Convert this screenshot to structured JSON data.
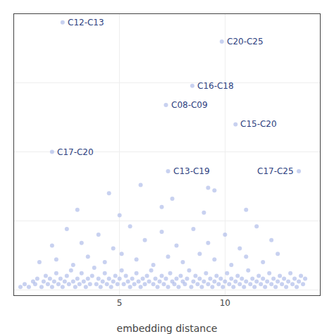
{
  "chart_data": {
    "type": "scatter",
    "xlabel": "embedding distance",
    "xlim": [
      0,
      14.5
    ],
    "ylim": [
      -0.02,
      1.0
    ],
    "xticks": [
      5,
      10
    ],
    "yticks": [
      0.0,
      0.25,
      0.5,
      0.75,
      1.0
    ],
    "grid": true,
    "tick_labels": "x",
    "color": "#aab8e8",
    "x": [
      0.3,
      0.5,
      0.7,
      0.9,
      1.0,
      1.1,
      1.3,
      1.4,
      1.5,
      1.6,
      1.7,
      1.8,
      1.9,
      2.0,
      2.1,
      2.2,
      2.3,
      2.4,
      2.5,
      2.6,
      2.7,
      2.8,
      2.9,
      3.0,
      3.1,
      3.2,
      3.3,
      3.4,
      3.5,
      3.6,
      3.7,
      3.8,
      3.9,
      4.0,
      4.1,
      4.2,
      4.3,
      4.4,
      4.5,
      4.6,
      4.7,
      4.8,
      4.9,
      5.0,
      5.1,
      5.2,
      5.3,
      5.4,
      5.5,
      5.6,
      5.7,
      5.8,
      5.9,
      6.0,
      6.1,
      6.2,
      6.3,
      6.4,
      6.5,
      6.6,
      6.7,
      6.8,
      6.9,
      7.0,
      7.1,
      7.2,
      7.3,
      7.4,
      7.5,
      7.6,
      7.7,
      7.8,
      7.9,
      8.0,
      8.1,
      8.2,
      8.3,
      8.4,
      8.5,
      8.6,
      8.7,
      8.8,
      8.9,
      9.0,
      9.1,
      9.2,
      9.3,
      9.4,
      9.5,
      9.6,
      9.7,
      9.8,
      9.9,
      10.0,
      10.1,
      10.2,
      10.3,
      10.4,
      10.5,
      10.6,
      10.7,
      10.8,
      10.9,
      11.0,
      11.1,
      11.2,
      11.3,
      11.4,
      11.5,
      11.6,
      11.7,
      11.8,
      11.9,
      12.0,
      12.1,
      12.2,
      12.3,
      12.4,
      12.5,
      12.6,
      12.7,
      12.8,
      12.9,
      13.0,
      13.1,
      13.2,
      13.3,
      13.4,
      13.5,
      13.6,
      13.7,
      13.8,
      1.2,
      2.0,
      2.8,
      3.5,
      4.3,
      5.1,
      5.8,
      6.6,
      7.3,
      8.0,
      8.8,
      9.5,
      10.3,
      11.0,
      11.8,
      12.5,
      1.8,
      3.2,
      4.7,
      6.2,
      7.7,
      9.2,
      10.7,
      12.2,
      2.5,
      4.0,
      5.5,
      7.0,
      8.5,
      10.0,
      11.5,
      3.0,
      5.0,
      7.0,
      9.0,
      11.0,
      4.5,
      7.5,
      9.5,
      6.0,
      9.2,
      2.3,
      9.85,
      8.45,
      7.2,
      10.5,
      1.8,
      7.3,
      13.5
    ],
    "values": [
      0.01,
      0.02,
      0.01,
      0.03,
      0.02,
      0.04,
      0.01,
      0.03,
      0.05,
      0.02,
      0.04,
      0.01,
      0.03,
      0.06,
      0.02,
      0.04,
      0.01,
      0.03,
      0.05,
      0.02,
      0.07,
      0.03,
      0.01,
      0.04,
      0.02,
      0.06,
      0.03,
      0.01,
      0.04,
      0.02,
      0.05,
      0.08,
      0.02,
      0.04,
      0.01,
      0.03,
      0.06,
      0.02,
      0.04,
      0.01,
      0.03,
      0.05,
      0.02,
      0.04,
      0.07,
      0.02,
      0.05,
      0.03,
      0.01,
      0.04,
      0.02,
      0.06,
      0.03,
      0.01,
      0.04,
      0.02,
      0.05,
      0.03,
      0.07,
      0.02,
      0.04,
      0.01,
      0.03,
      0.05,
      0.02,
      0.04,
      0.01,
      0.06,
      0.03,
      0.02,
      0.04,
      0.01,
      0.05,
      0.03,
      0.02,
      0.04,
      0.07,
      0.01,
      0.03,
      0.05,
      0.02,
      0.04,
      0.01,
      0.03,
      0.06,
      0.02,
      0.04,
      0.01,
      0.03,
      0.05,
      0.02,
      0.04,
      0.01,
      0.03,
      0.06,
      0.02,
      0.04,
      0.01,
      0.03,
      0.05,
      0.02,
      0.04,
      0.01,
      0.03,
      0.07,
      0.02,
      0.04,
      0.01,
      0.03,
      0.05,
      0.02,
      0.04,
      0.01,
      0.03,
      0.06,
      0.02,
      0.04,
      0.01,
      0.03,
      0.05,
      0.02,
      0.04,
      0.01,
      0.03,
      0.06,
      0.02,
      0.04,
      0.01,
      0.03,
      0.05,
      0.02,
      0.04,
      0.1,
      0.11,
      0.09,
      0.12,
      0.1,
      0.13,
      0.11,
      0.09,
      0.12,
      0.1,
      0.13,
      0.11,
      0.09,
      0.12,
      0.1,
      0.13,
      0.16,
      0.17,
      0.15,
      0.18,
      0.16,
      0.17,
      0.15,
      0.18,
      0.22,
      0.2,
      0.23,
      0.21,
      0.22,
      0.2,
      0.23,
      0.29,
      0.27,
      0.3,
      0.28,
      0.29,
      0.35,
      0.33,
      0.36,
      0.38,
      0.37,
      0.97,
      0.9,
      0.74,
      0.67,
      0.6,
      0.5,
      0.43,
      0.43
    ],
    "annotations": [
      {
        "text": "C12-C13",
        "x": 2.3,
        "y": 0.97
      },
      {
        "text": "C20-C25",
        "x": 9.85,
        "y": 0.9
      },
      {
        "text": "C16-C18",
        "x": 8.45,
        "y": 0.74
      },
      {
        "text": "C08-C09",
        "x": 7.2,
        "y": 0.67
      },
      {
        "text": "C15-C20",
        "x": 10.5,
        "y": 0.6
      },
      {
        "text": "C17-C20",
        "x": 1.8,
        "y": 0.5
      },
      {
        "text": "C13-C19",
        "x": 7.3,
        "y": 0.43
      },
      {
        "text": "C17-C25",
        "x": 13.5,
        "y": 0.43
      }
    ]
  }
}
